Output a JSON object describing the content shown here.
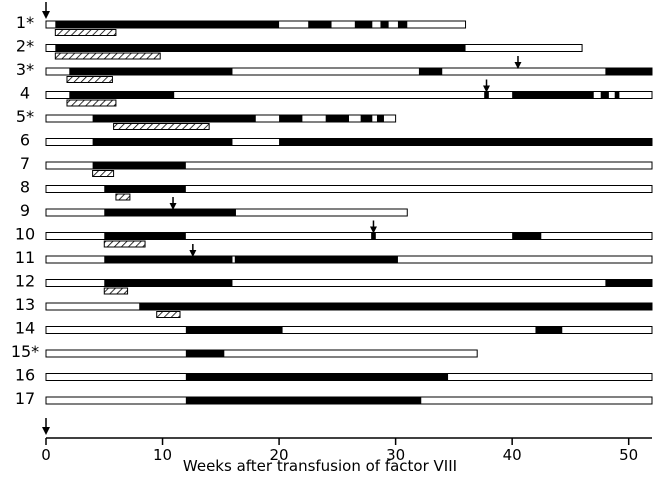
{
  "chart_data": {
    "type": "timeline",
    "xlabel": "Weeks after transfusion of factor VIII",
    "xlim": [
      0,
      52
    ],
    "x_ticks": [
      0,
      10,
      20,
      30,
      40,
      50
    ],
    "grid": false,
    "legend": "none",
    "colors": {
      "ink": "#000000",
      "background": "#ffffff"
    },
    "patients": [
      {
        "label": "1*",
        "bar_end": 36,
        "black": [
          [
            0.8,
            20
          ],
          [
            22.5,
            24.5
          ],
          [
            26.5,
            28
          ],
          [
            28.7,
            29.4
          ],
          [
            30.2,
            31
          ]
        ],
        "hatched": [
          [
            0.8,
            6
          ]
        ],
        "arrows": []
      },
      {
        "label": "2*",
        "bar_end": 46,
        "black": [
          [
            0.8,
            36
          ]
        ],
        "hatched": [
          [
            0.8,
            9.8
          ]
        ],
        "arrows": []
      },
      {
        "label": "3*",
        "bar_end": 52,
        "black": [
          [
            2,
            16
          ],
          [
            32,
            34
          ],
          [
            48,
            52
          ]
        ],
        "hatched": [
          [
            1.8,
            5.7
          ]
        ],
        "arrows": [
          40.5
        ]
      },
      {
        "label": "4",
        "bar_end": 52,
        "black": [
          [
            2,
            11
          ],
          [
            37.6,
            38
          ],
          [
            40,
            47
          ],
          [
            47.6,
            48.3
          ],
          [
            48.8,
            49.2
          ]
        ],
        "hatched": [
          [
            1.8,
            6
          ]
        ],
        "arrows": [
          37.8
        ]
      },
      {
        "label": "5*",
        "bar_end": 30,
        "black": [
          [
            4,
            18
          ],
          [
            20,
            22
          ],
          [
            24,
            26
          ],
          [
            27,
            28
          ],
          [
            28.4,
            29
          ]
        ],
        "hatched": [
          [
            5.8,
            14
          ]
        ],
        "arrows": []
      },
      {
        "label": "6",
        "bar_end": 52,
        "black": [
          [
            4,
            16
          ],
          [
            20,
            52
          ]
        ],
        "hatched": [],
        "arrows": []
      },
      {
        "label": "7",
        "bar_end": 52,
        "black": [
          [
            4,
            12
          ]
        ],
        "hatched": [
          [
            4,
            5.8
          ]
        ],
        "arrows": []
      },
      {
        "label": "8",
        "bar_end": 52,
        "black": [
          [
            5,
            12
          ]
        ],
        "hatched": [
          [
            6,
            7.2
          ]
        ],
        "arrows": []
      },
      {
        "label": "9",
        "bar_end": 31,
        "black": [
          [
            5,
            16.3
          ]
        ],
        "hatched": [],
        "arrows": [
          10.9
        ]
      },
      {
        "label": "10",
        "bar_end": 52,
        "black": [
          [
            5,
            12
          ],
          [
            27.9,
            28.3
          ],
          [
            40,
            42.5
          ]
        ],
        "hatched": [
          [
            5,
            8.5
          ]
        ],
        "arrows": [
          28.1
        ]
      },
      {
        "label": "11",
        "bar_end": 52,
        "black": [
          [
            5,
            16
          ],
          [
            16.2,
            30.2
          ]
        ],
        "hatched": [],
        "arrows": [
          12.6
        ]
      },
      {
        "label": "12",
        "bar_end": 52,
        "black": [
          [
            5,
            16
          ],
          [
            48,
            52
          ]
        ],
        "hatched": [
          [
            5,
            7
          ]
        ],
        "arrows": []
      },
      {
        "label": "13",
        "bar_end": 52,
        "black": [
          [
            8,
            52
          ]
        ],
        "hatched": [
          [
            9.5,
            11.5
          ]
        ],
        "arrows": []
      },
      {
        "label": "14",
        "bar_end": 52,
        "black": [
          [
            12,
            20.3
          ],
          [
            42,
            44.3
          ]
        ],
        "hatched": [],
        "arrows": []
      },
      {
        "label": "15*",
        "bar_end": 37,
        "black": [
          [
            12,
            15.3
          ]
        ],
        "hatched": [],
        "arrows": []
      },
      {
        "label": "16",
        "bar_end": 52,
        "black": [
          [
            12,
            34.5
          ]
        ],
        "hatched": [],
        "arrows": []
      },
      {
        "label": "17",
        "bar_end": 52,
        "black": [
          [
            12,
            32.2
          ]
        ],
        "hatched": [],
        "arrows": []
      }
    ]
  }
}
